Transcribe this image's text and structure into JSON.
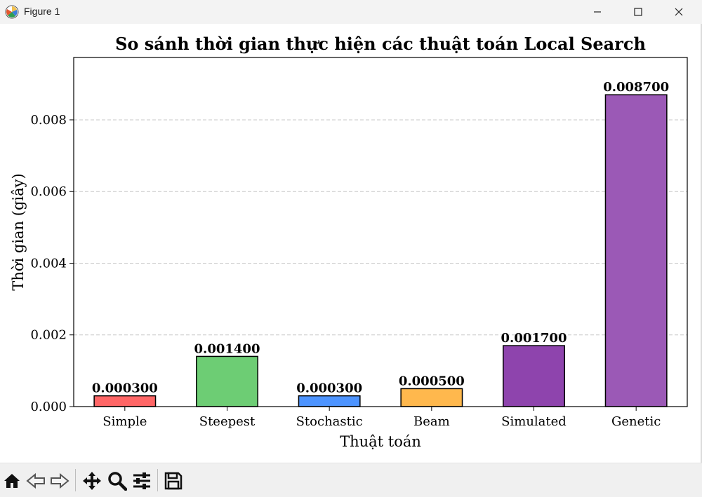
{
  "window": {
    "title": "Figure 1",
    "controls": [
      "minimize",
      "maximize",
      "close"
    ]
  },
  "toolbar": {
    "buttons": [
      {
        "name": "home-icon",
        "action": "Home"
      },
      {
        "name": "back-icon",
        "action": "Back"
      },
      {
        "name": "forward-icon",
        "action": "Forward"
      },
      {
        "name": "pan-icon",
        "action": "Pan"
      },
      {
        "name": "zoom-icon",
        "action": "Zoom"
      },
      {
        "name": "configure-subplots-icon",
        "action": "Configure subplots"
      },
      {
        "name": "save-icon",
        "action": "Save"
      }
    ]
  },
  "chart_data": {
    "type": "bar",
    "title": "So sánh thời gian thực hiện các thuật toán Local Search",
    "xlabel": "Thuật toán",
    "ylabel": "Thời gian (giây)",
    "categories": [
      "Simple",
      "Steepest",
      "Stochastic",
      "Beam",
      "Simulated",
      "Genetic"
    ],
    "values": [
      0.0003,
      0.0014,
      0.0003,
      0.0005,
      0.0017,
      0.0087
    ],
    "value_labels": [
      "0.000300",
      "0.001400",
      "0.000300",
      "0.000500",
      "0.001700",
      "0.008700"
    ],
    "colors": [
      "#ff6666",
      "#6dcd74",
      "#4d94ff",
      "#ffb84d",
      "#8e44ad",
      "#9b59b6"
    ],
    "ylim": [
      0,
      0.00974
    ],
    "yticks": [
      "0.000",
      "0.002",
      "0.004",
      "0.006",
      "0.008"
    ],
    "ytick_values": [
      0,
      0.002,
      0.004,
      0.006,
      0.008
    ],
    "grid": "y-dashed",
    "legend": "none"
  }
}
